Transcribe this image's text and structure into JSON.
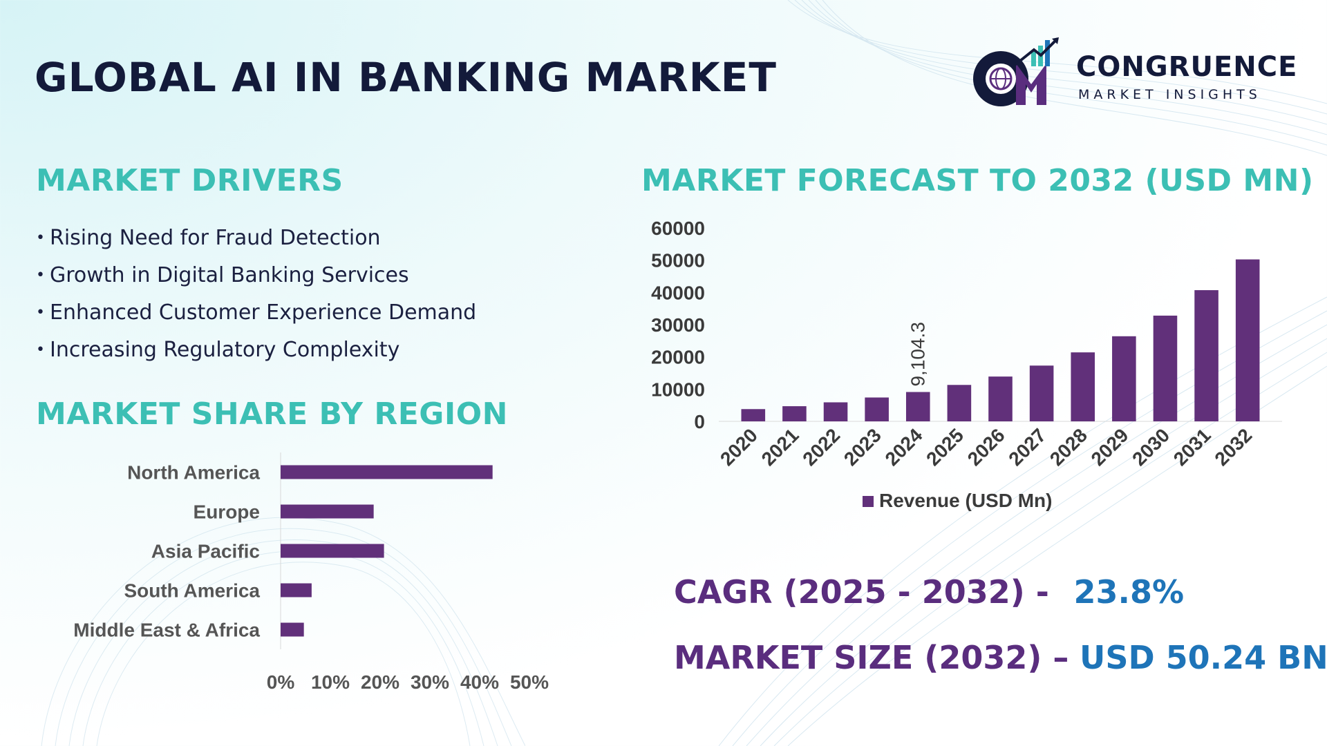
{
  "page": {
    "title": "GLOBAL AI IN BANKING MARKET",
    "logo": {
      "name": "CONGRUENCE",
      "tagline": "MARKET INSIGHTS"
    },
    "colors": {
      "bar": "#61307a",
      "section_title": "#3cbfb4",
      "kpi_label": "#5a2d7e",
      "kpi_value": "#1e74b8",
      "title": "#131a3a"
    }
  },
  "drivers": {
    "heading": "MARKET DRIVERS",
    "items": [
      "Rising Need for Fraud Detection",
      "Growth in Digital Banking Services",
      "Enhanced Customer Experience Demand",
      "Increasing Regulatory Complexity"
    ]
  },
  "regions": {
    "heading": "MARKET SHARE BY REGION"
  },
  "forecast": {
    "heading": "MARKET FORECAST TO 2032 (USD MN)"
  },
  "kpis": {
    "cagr_label": "CAGR (2025 - 2032) -",
    "cagr_value": "23.8%",
    "size_label": "MARKET SIZE (2032) –",
    "size_value": "USD 50.24 BN"
  },
  "chart_data": [
    {
      "type": "bar",
      "orientation": "vertical",
      "categories": [
        "2020",
        "2021",
        "2022",
        "2023",
        "2024",
        "2025",
        "2026",
        "2027",
        "2028",
        "2029",
        "2030",
        "2031",
        "2032"
      ],
      "series": [
        {
          "name": "Revenue (USD Mn)",
          "values": [
            3800,
            4700,
            5900,
            7400,
            9104.3,
            11300,
            13900,
            17300,
            21400,
            26400,
            32800,
            40700,
            50240
          ]
        }
      ],
      "data_labels": [
        {
          "category": "2024",
          "text": "9,104.3"
        }
      ],
      "ylim": [
        0,
        60000
      ],
      "yticks": [
        0,
        10000,
        20000,
        30000,
        40000,
        50000,
        60000
      ],
      "legend": "bottom",
      "grid": false
    },
    {
      "type": "bar",
      "orientation": "horizontal",
      "categories": [
        "North America",
        "Europe",
        "Asia Pacific",
        "South America",
        "Middle East & Africa"
      ],
      "series": [
        {
          "values": [
            41,
            18,
            20,
            6,
            4.5
          ]
        }
      ],
      "xlim": [
        0,
        50
      ],
      "xticks": [
        "0%",
        "10%",
        "20%",
        "30%",
        "40%",
        "50%"
      ],
      "grid": false
    }
  ]
}
